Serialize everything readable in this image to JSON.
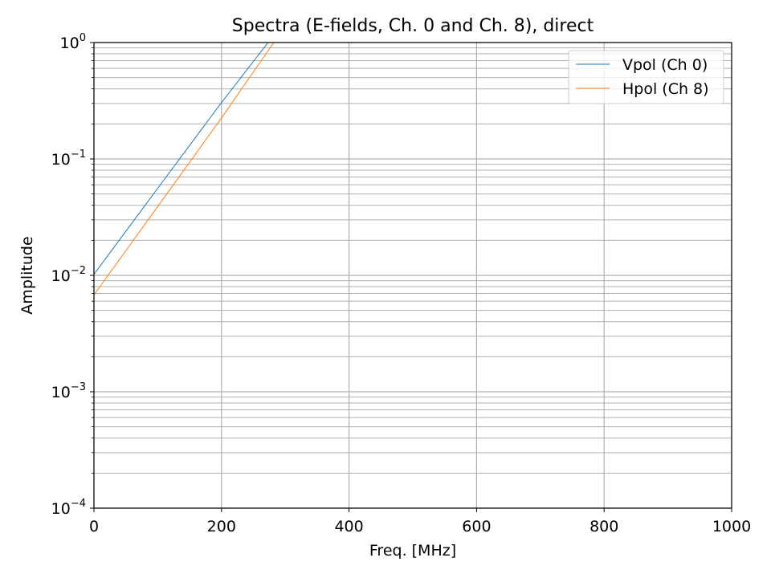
{
  "chart_data": {
    "type": "line",
    "title": "Spectra (E-fields, Ch. 0 and Ch. 8), direct",
    "xlabel": "Freq. [MHz]",
    "ylabel": "Amplitude",
    "xlim": [
      0,
      1000
    ],
    "ylim": [
      0.0001,
      1
    ],
    "yscale": "log",
    "grid": true,
    "legend_position": "top-right",
    "x_ticks": [
      0,
      200,
      400,
      600,
      800,
      1000
    ],
    "x_tick_labels": [
      "0",
      "200",
      "400",
      "600",
      "800",
      "1000"
    ],
    "y_ticks": [
      {
        "value": 1,
        "base": "10",
        "exp": "0"
      },
      {
        "value": 0.1,
        "base": "10",
        "exp": "−1"
      },
      {
        "value": 0.01,
        "base": "10",
        "exp": "−2"
      },
      {
        "value": 0.001,
        "base": "10",
        "exp": "−3"
      },
      {
        "value": 0.0001,
        "base": "10",
        "exp": "−4"
      }
    ],
    "series": [
      {
        "name": "Vpol (Ch 0)",
        "color": "#1f77b4",
        "x": [
          0,
          100,
          200,
          273
        ],
        "y": [
          0.0102,
          0.056,
          0.305,
          1.0
        ]
      },
      {
        "name": "Hpol (Ch 8)",
        "color": "#ff7f0e",
        "x": [
          0,
          100,
          200,
          282
        ],
        "y": [
          0.0068,
          0.039,
          0.225,
          1.0
        ]
      }
    ]
  }
}
